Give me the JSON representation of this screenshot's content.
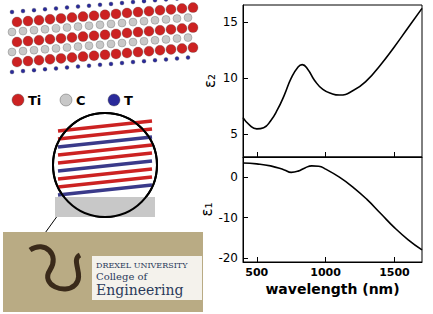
{
  "chart_data": [
    {
      "type": "line",
      "ylabel": "ε₂",
      "color": "#000000",
      "x": [
        400,
        450,
        500,
        550,
        600,
        650,
        700,
        750,
        800,
        830,
        870,
        920,
        980,
        1050,
        1100,
        1200,
        1300,
        1400,
        1500,
        1600,
        1700
      ],
      "values": [
        6.5,
        5.8,
        5.5,
        5.6,
        6.2,
        7.2,
        8.5,
        10,
        11,
        11.2,
        10.8,
        9.8,
        9,
        8.6,
        8.5,
        8.9,
        9.8,
        11.2,
        12.8,
        14.5,
        16.2
      ],
      "xlim": [
        400,
        1700
      ],
      "xticks": [
        500,
        1000,
        1500
      ],
      "ylim": [
        3,
        16.5
      ],
      "yticks": [
        5,
        10,
        15
      ],
      "tick_labels": "y"
    },
    {
      "type": "line",
      "xlabel": "wavelength (nm)",
      "ylabel": "ε₁",
      "color": "#000000",
      "x": [
        400,
        500,
        600,
        700,
        750,
        800,
        850,
        900,
        950,
        1000,
        1100,
        1200,
        1300,
        1400,
        1500,
        1600,
        1700
      ],
      "values": [
        3.5,
        3.3,
        2.8,
        1.8,
        1.2,
        1.5,
        2.3,
        2.8,
        2.7,
        2.0,
        0,
        -2.5,
        -5.5,
        -9,
        -12.5,
        -15.5,
        -18
      ],
      "xlim": [
        400,
        1700
      ],
      "xticks": [
        500,
        1000,
        1500
      ],
      "ylim": [
        -21,
        5
      ],
      "yticks": [
        0,
        -10,
        -20
      ]
    }
  ],
  "illustration": {
    "atoms": [
      {
        "label": "Ti",
        "color": "#cc2222"
      },
      {
        "label": "C",
        "color": "#c8c8c8"
      },
      {
        "label": "T",
        "color": "#2a2a9a"
      }
    ],
    "photo_text": [
      "DREXEL UNIVERSITY",
      "College of",
      "Engineering"
    ]
  }
}
